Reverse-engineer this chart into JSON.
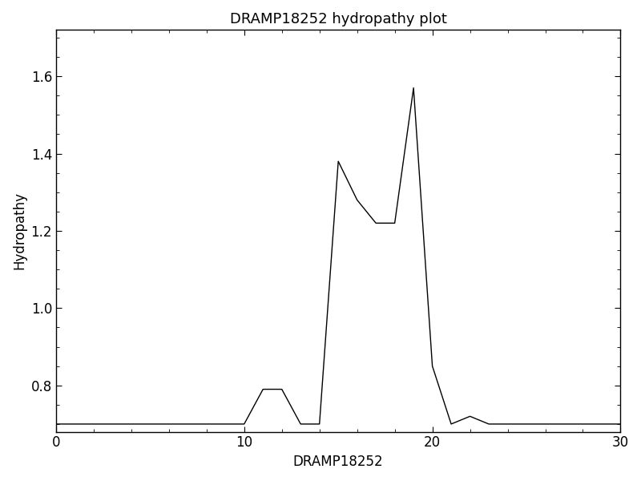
{
  "title": "DRAMP18252 hydropathy plot",
  "xlabel": "DRAMP18252",
  "ylabel": "Hydropathy",
  "xlim": [
    0,
    30
  ],
  "ylim": [
    0.68,
    1.72
  ],
  "xticks": [
    0,
    10,
    20,
    30
  ],
  "yticks": [
    0.8,
    1.0,
    1.2,
    1.4,
    1.6
  ],
  "line_color": "black",
  "line_width": 1.0,
  "background_color": "white",
  "title_fontsize": 13,
  "label_fontsize": 12,
  "tick_fontsize": 12,
  "x": [
    0,
    1,
    2,
    3,
    4,
    5,
    6,
    7,
    8,
    9,
    10,
    11,
    12,
    13,
    14,
    15,
    16,
    17,
    18,
    19,
    20,
    21,
    22,
    23,
    24,
    25,
    26,
    27,
    28,
    29,
    30
  ],
  "y": [
    0.7,
    0.7,
    0.7,
    0.7,
    0.7,
    0.7,
    0.7,
    0.7,
    0.7,
    0.7,
    0.7,
    0.79,
    0.79,
    0.7,
    0.7,
    1.38,
    1.28,
    1.22,
    1.22,
    1.57,
    0.85,
    0.7,
    0.72,
    0.7,
    0.7,
    0.7,
    0.7,
    0.7,
    0.7,
    0.7,
    0.7
  ]
}
